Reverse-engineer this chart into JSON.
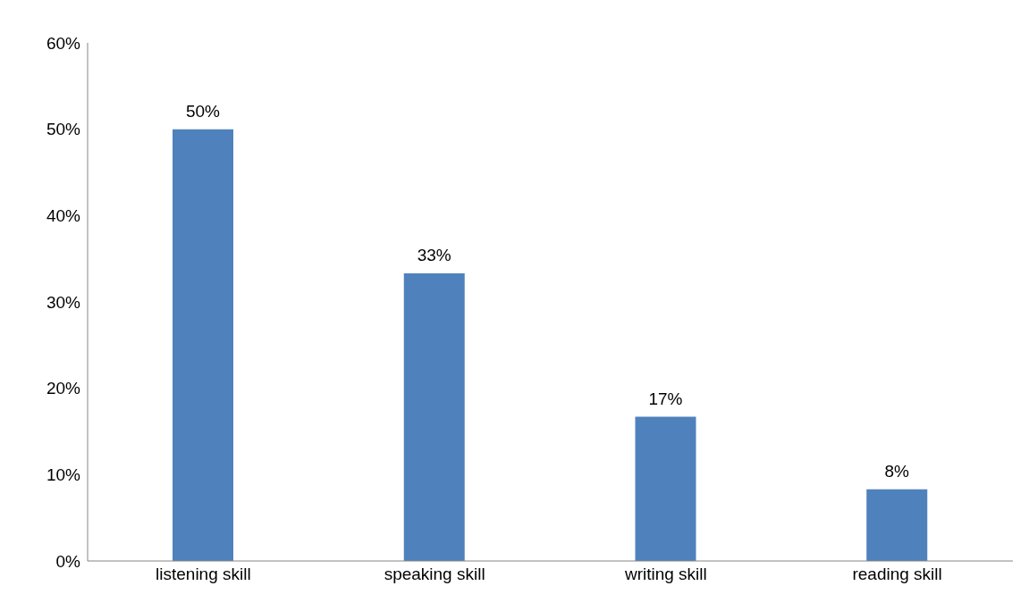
{
  "chart_data": {
    "type": "bar",
    "categories": [
      "listening skill",
      "speaking skill",
      "writing skill",
      "reading skill"
    ],
    "values": [
      50,
      33.3,
      16.7,
      8.3
    ],
    "value_labels": [
      "50%",
      "33%",
      "17%",
      "8%"
    ],
    "color": "#4f81bd",
    "grid": false,
    "legend": false,
    "ylim": [
      0,
      60
    ],
    "yticks": [
      {
        "value": 0,
        "label": "0%"
      },
      {
        "value": 10,
        "label": "10%"
      },
      {
        "value": 20,
        "label": "20%"
      },
      {
        "value": 30,
        "label": "30%"
      },
      {
        "value": 40,
        "label": "40%"
      },
      {
        "value": 50,
        "label": "50%"
      },
      {
        "value": 60,
        "label": "60%"
      }
    ]
  }
}
